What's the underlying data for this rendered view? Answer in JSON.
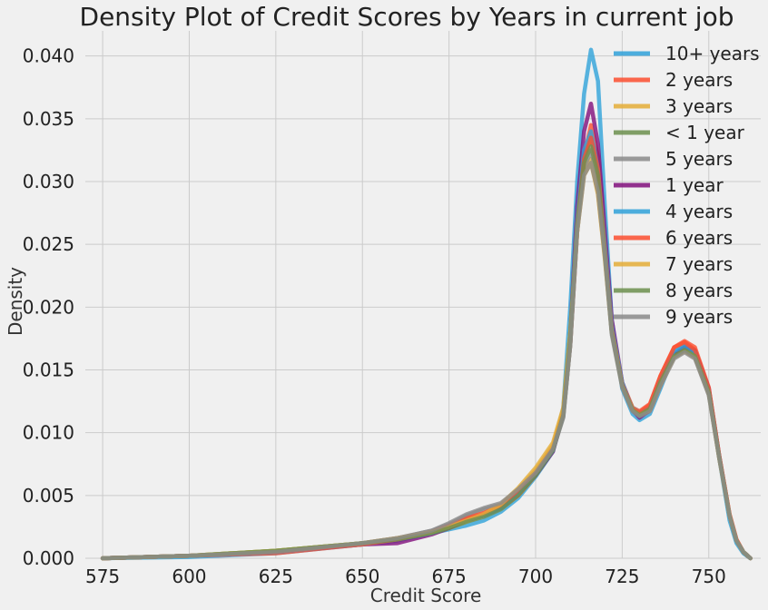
{
  "chart_data": {
    "type": "line",
    "title": "Density Plot of Credit Scores by Years in current job",
    "xlabel": "Credit Score",
    "ylabel": "Density",
    "xlim": [
      570,
      765
    ],
    "ylim": [
      0,
      0.042
    ],
    "xticks": [
      575,
      600,
      625,
      650,
      675,
      700,
      725,
      750
    ],
    "yticks": [
      0.0,
      0.005,
      0.01,
      0.015,
      0.02,
      0.025,
      0.03,
      0.035,
      0.04
    ],
    "ytick_labels": [
      "0.000",
      "0.005",
      "0.010",
      "0.015",
      "0.020",
      "0.025",
      "0.030",
      "0.035",
      "0.040"
    ],
    "grid": true,
    "legend_position": "top-right",
    "series": [
      {
        "name": "10+ years",
        "color": "#30a2da",
        "x": [
          575,
          600,
          625,
          650,
          660,
          670,
          675,
          680,
          685,
          690,
          695,
          700,
          705,
          708,
          710,
          712,
          714,
          716,
          718,
          720,
          722,
          725,
          728,
          730,
          733,
          736,
          740,
          743,
          746,
          750,
          753,
          756,
          758,
          760,
          762
        ],
        "y": [
          0,
          0.0001,
          0.0004,
          0.0011,
          0.0014,
          0.002,
          0.0023,
          0.0026,
          0.003,
          0.0037,
          0.0048,
          0.0065,
          0.0085,
          0.012,
          0.02,
          0.03,
          0.037,
          0.0405,
          0.038,
          0.028,
          0.019,
          0.0135,
          0.0115,
          0.011,
          0.0115,
          0.0135,
          0.0163,
          0.017,
          0.0166,
          0.0135,
          0.008,
          0.003,
          0.0012,
          0.0004,
          0
        ]
      },
      {
        "name": "2 years",
        "color": "#fc4f30",
        "x": [
          575,
          600,
          625,
          650,
          660,
          670,
          675,
          680,
          685,
          690,
          695,
          700,
          705,
          708,
          710,
          712,
          714,
          716,
          718,
          720,
          722,
          725,
          728,
          730,
          733,
          736,
          740,
          743,
          746,
          750,
          753,
          756,
          758,
          760,
          762
        ],
        "y": [
          0,
          0.0002,
          0.0004,
          0.0011,
          0.0015,
          0.0021,
          0.0025,
          0.0031,
          0.0035,
          0.004,
          0.005,
          0.0066,
          0.0087,
          0.0115,
          0.017,
          0.026,
          0.032,
          0.0345,
          0.032,
          0.025,
          0.0185,
          0.014,
          0.012,
          0.0117,
          0.0123,
          0.0145,
          0.0168,
          0.0173,
          0.0168,
          0.0136,
          0.0082,
          0.0035,
          0.0015,
          0.0005,
          0
        ]
      },
      {
        "name": "3 years",
        "color": "#e5ae38",
        "x": [
          575,
          600,
          625,
          650,
          660,
          670,
          675,
          680,
          685,
          690,
          695,
          700,
          705,
          708,
          710,
          712,
          714,
          716,
          718,
          720,
          722,
          725,
          728,
          730,
          733,
          736,
          740,
          743,
          746,
          750,
          753,
          756,
          758,
          760,
          762
        ],
        "y": [
          0,
          0.0002,
          0.0006,
          0.0012,
          0.0016,
          0.0021,
          0.0024,
          0.0029,
          0.0034,
          0.0042,
          0.0055,
          0.007,
          0.009,
          0.0118,
          0.018,
          0.026,
          0.031,
          0.0318,
          0.029,
          0.024,
          0.018,
          0.0138,
          0.012,
          0.0115,
          0.0118,
          0.0138,
          0.0162,
          0.0167,
          0.0162,
          0.0132,
          0.008,
          0.0034,
          0.0014,
          0.0005,
          0
        ]
      },
      {
        "name": "< 1 year",
        "color": "#6d904f",
        "x": [
          575,
          600,
          625,
          650,
          660,
          670,
          675,
          680,
          685,
          690,
          695,
          700,
          705,
          708,
          710,
          712,
          714,
          716,
          718,
          720,
          722,
          725,
          728,
          730,
          733,
          736,
          740,
          743,
          746,
          750,
          753,
          756,
          758,
          760,
          762
        ],
        "y": [
          0,
          0.0002,
          0.0006,
          0.0012,
          0.0015,
          0.002,
          0.0024,
          0.003,
          0.0034,
          0.004,
          0.0053,
          0.0068,
          0.0086,
          0.0113,
          0.017,
          0.0265,
          0.032,
          0.0335,
          0.031,
          0.0245,
          0.018,
          0.0138,
          0.0118,
          0.0115,
          0.012,
          0.014,
          0.0162,
          0.0167,
          0.0162,
          0.0133,
          0.0081,
          0.0034,
          0.0014,
          0.0005,
          0
        ]
      },
      {
        "name": "5 years",
        "color": "#8b8b8b",
        "x": [
          575,
          600,
          625,
          650,
          660,
          670,
          675,
          680,
          685,
          690,
          695,
          700,
          705,
          708,
          710,
          712,
          714,
          716,
          718,
          720,
          722,
          725,
          728,
          730,
          733,
          736,
          740,
          743,
          746,
          750,
          753,
          756,
          758,
          760,
          762
        ],
        "y": [
          0,
          0.0002,
          0.0005,
          0.0012,
          0.0016,
          0.0022,
          0.0027,
          0.0034,
          0.0039,
          0.0043,
          0.0054,
          0.0068,
          0.0086,
          0.0112,
          0.017,
          0.026,
          0.031,
          0.0325,
          0.03,
          0.0245,
          0.018,
          0.0138,
          0.012,
          0.0116,
          0.012,
          0.014,
          0.016,
          0.0165,
          0.016,
          0.013,
          0.008,
          0.0034,
          0.0014,
          0.0005,
          0
        ]
      },
      {
        "name": "1 year",
        "color": "#810f7c",
        "x": [
          575,
          600,
          625,
          650,
          660,
          670,
          675,
          680,
          685,
          690,
          695,
          700,
          705,
          708,
          710,
          712,
          714,
          716,
          718,
          720,
          722,
          725,
          728,
          730,
          733,
          736,
          740,
          743,
          746,
          750,
          753,
          756,
          758,
          760,
          762
        ],
        "y": [
          0,
          0.0002,
          0.0005,
          0.0011,
          0.0012,
          0.0019,
          0.0024,
          0.003,
          0.0034,
          0.004,
          0.0052,
          0.0066,
          0.0085,
          0.0115,
          0.018,
          0.028,
          0.034,
          0.0362,
          0.033,
          0.026,
          0.019,
          0.014,
          0.0118,
          0.0112,
          0.0118,
          0.0138,
          0.0162,
          0.0168,
          0.0165,
          0.0135,
          0.0082,
          0.0034,
          0.0014,
          0.0005,
          0
        ]
      },
      {
        "name": "4 years",
        "color": "#30a2da",
        "x": [
          575,
          600,
          625,
          650,
          660,
          670,
          675,
          680,
          685,
          690,
          695,
          700,
          705,
          708,
          710,
          712,
          714,
          716,
          718,
          720,
          722,
          725,
          728,
          730,
          733,
          736,
          740,
          743,
          746,
          750,
          753,
          756,
          758,
          760,
          762
        ],
        "y": [
          0,
          0.0002,
          0.0005,
          0.0011,
          0.0015,
          0.002,
          0.0025,
          0.003,
          0.0034,
          0.004,
          0.0052,
          0.0067,
          0.0086,
          0.0115,
          0.018,
          0.027,
          0.0325,
          0.034,
          0.031,
          0.025,
          0.0185,
          0.014,
          0.0118,
          0.0114,
          0.012,
          0.0142,
          0.0165,
          0.0169,
          0.0164,
          0.0134,
          0.0081,
          0.0034,
          0.0014,
          0.0005,
          0
        ]
      },
      {
        "name": "6 years",
        "color": "#fc4f30",
        "x": [
          575,
          600,
          625,
          650,
          660,
          670,
          675,
          680,
          685,
          690,
          695,
          700,
          705,
          708,
          710,
          712,
          714,
          716,
          718,
          720,
          722,
          725,
          728,
          730,
          733,
          736,
          740,
          743,
          746,
          750,
          753,
          756,
          758,
          760,
          762
        ],
        "y": [
          0,
          0.0002,
          0.0005,
          0.0011,
          0.0015,
          0.0021,
          0.0026,
          0.0032,
          0.0036,
          0.0042,
          0.0054,
          0.0068,
          0.0088,
          0.0116,
          0.0175,
          0.0265,
          0.0318,
          0.0335,
          0.031,
          0.0245,
          0.0182,
          0.0138,
          0.0119,
          0.0116,
          0.0122,
          0.0145,
          0.0168,
          0.0172,
          0.0166,
          0.0135,
          0.0082,
          0.0035,
          0.0015,
          0.0005,
          0
        ]
      },
      {
        "name": "7 years",
        "color": "#e5ae38",
        "x": [
          575,
          600,
          625,
          650,
          660,
          670,
          675,
          680,
          685,
          690,
          695,
          700,
          705,
          708,
          710,
          712,
          714,
          716,
          718,
          720,
          722,
          725,
          728,
          730,
          733,
          736,
          740,
          743,
          746,
          750,
          753,
          756,
          758,
          760,
          762
        ],
        "y": [
          0,
          0.0002,
          0.0006,
          0.0012,
          0.0016,
          0.0021,
          0.0025,
          0.003,
          0.0035,
          0.0043,
          0.0056,
          0.0072,
          0.0092,
          0.012,
          0.018,
          0.026,
          0.0305,
          0.0315,
          0.029,
          0.0238,
          0.018,
          0.0137,
          0.0118,
          0.0114,
          0.0118,
          0.0138,
          0.016,
          0.0165,
          0.016,
          0.0131,
          0.008,
          0.0034,
          0.0014,
          0.0005,
          0
        ]
      },
      {
        "name": "8 years",
        "color": "#6d904f",
        "x": [
          575,
          600,
          625,
          650,
          660,
          670,
          675,
          680,
          685,
          690,
          695,
          700,
          705,
          708,
          710,
          712,
          714,
          716,
          718,
          720,
          722,
          725,
          728,
          730,
          733,
          736,
          740,
          743,
          746,
          750,
          753,
          756,
          758,
          760,
          762
        ],
        "y": [
          0,
          0.0002,
          0.0006,
          0.0012,
          0.0015,
          0.002,
          0.0024,
          0.0029,
          0.0033,
          0.0039,
          0.005,
          0.0066,
          0.0086,
          0.0114,
          0.0175,
          0.0265,
          0.0315,
          0.0328,
          0.0305,
          0.0242,
          0.018,
          0.0137,
          0.0118,
          0.0114,
          0.0119,
          0.014,
          0.0161,
          0.0166,
          0.0161,
          0.0132,
          0.0081,
          0.0034,
          0.0014,
          0.0005,
          0
        ]
      },
      {
        "name": "9 years",
        "color": "#8b8b8b",
        "x": [
          575,
          600,
          625,
          650,
          660,
          670,
          675,
          680,
          685,
          690,
          695,
          700,
          705,
          708,
          710,
          712,
          714,
          716,
          718,
          720,
          722,
          725,
          728,
          730,
          733,
          736,
          740,
          743,
          746,
          750,
          753,
          756,
          758,
          760,
          762
        ],
        "y": [
          0,
          0.0002,
          0.0005,
          0.0012,
          0.0016,
          0.0022,
          0.0028,
          0.0035,
          0.004,
          0.0044,
          0.0055,
          0.0068,
          0.0087,
          0.0113,
          0.017,
          0.026,
          0.0305,
          0.0315,
          0.0292,
          0.024,
          0.0178,
          0.0136,
          0.0117,
          0.0113,
          0.0117,
          0.0137,
          0.0159,
          0.0164,
          0.0159,
          0.013,
          0.008,
          0.0034,
          0.0014,
          0.0005,
          0
        ]
      }
    ]
  }
}
